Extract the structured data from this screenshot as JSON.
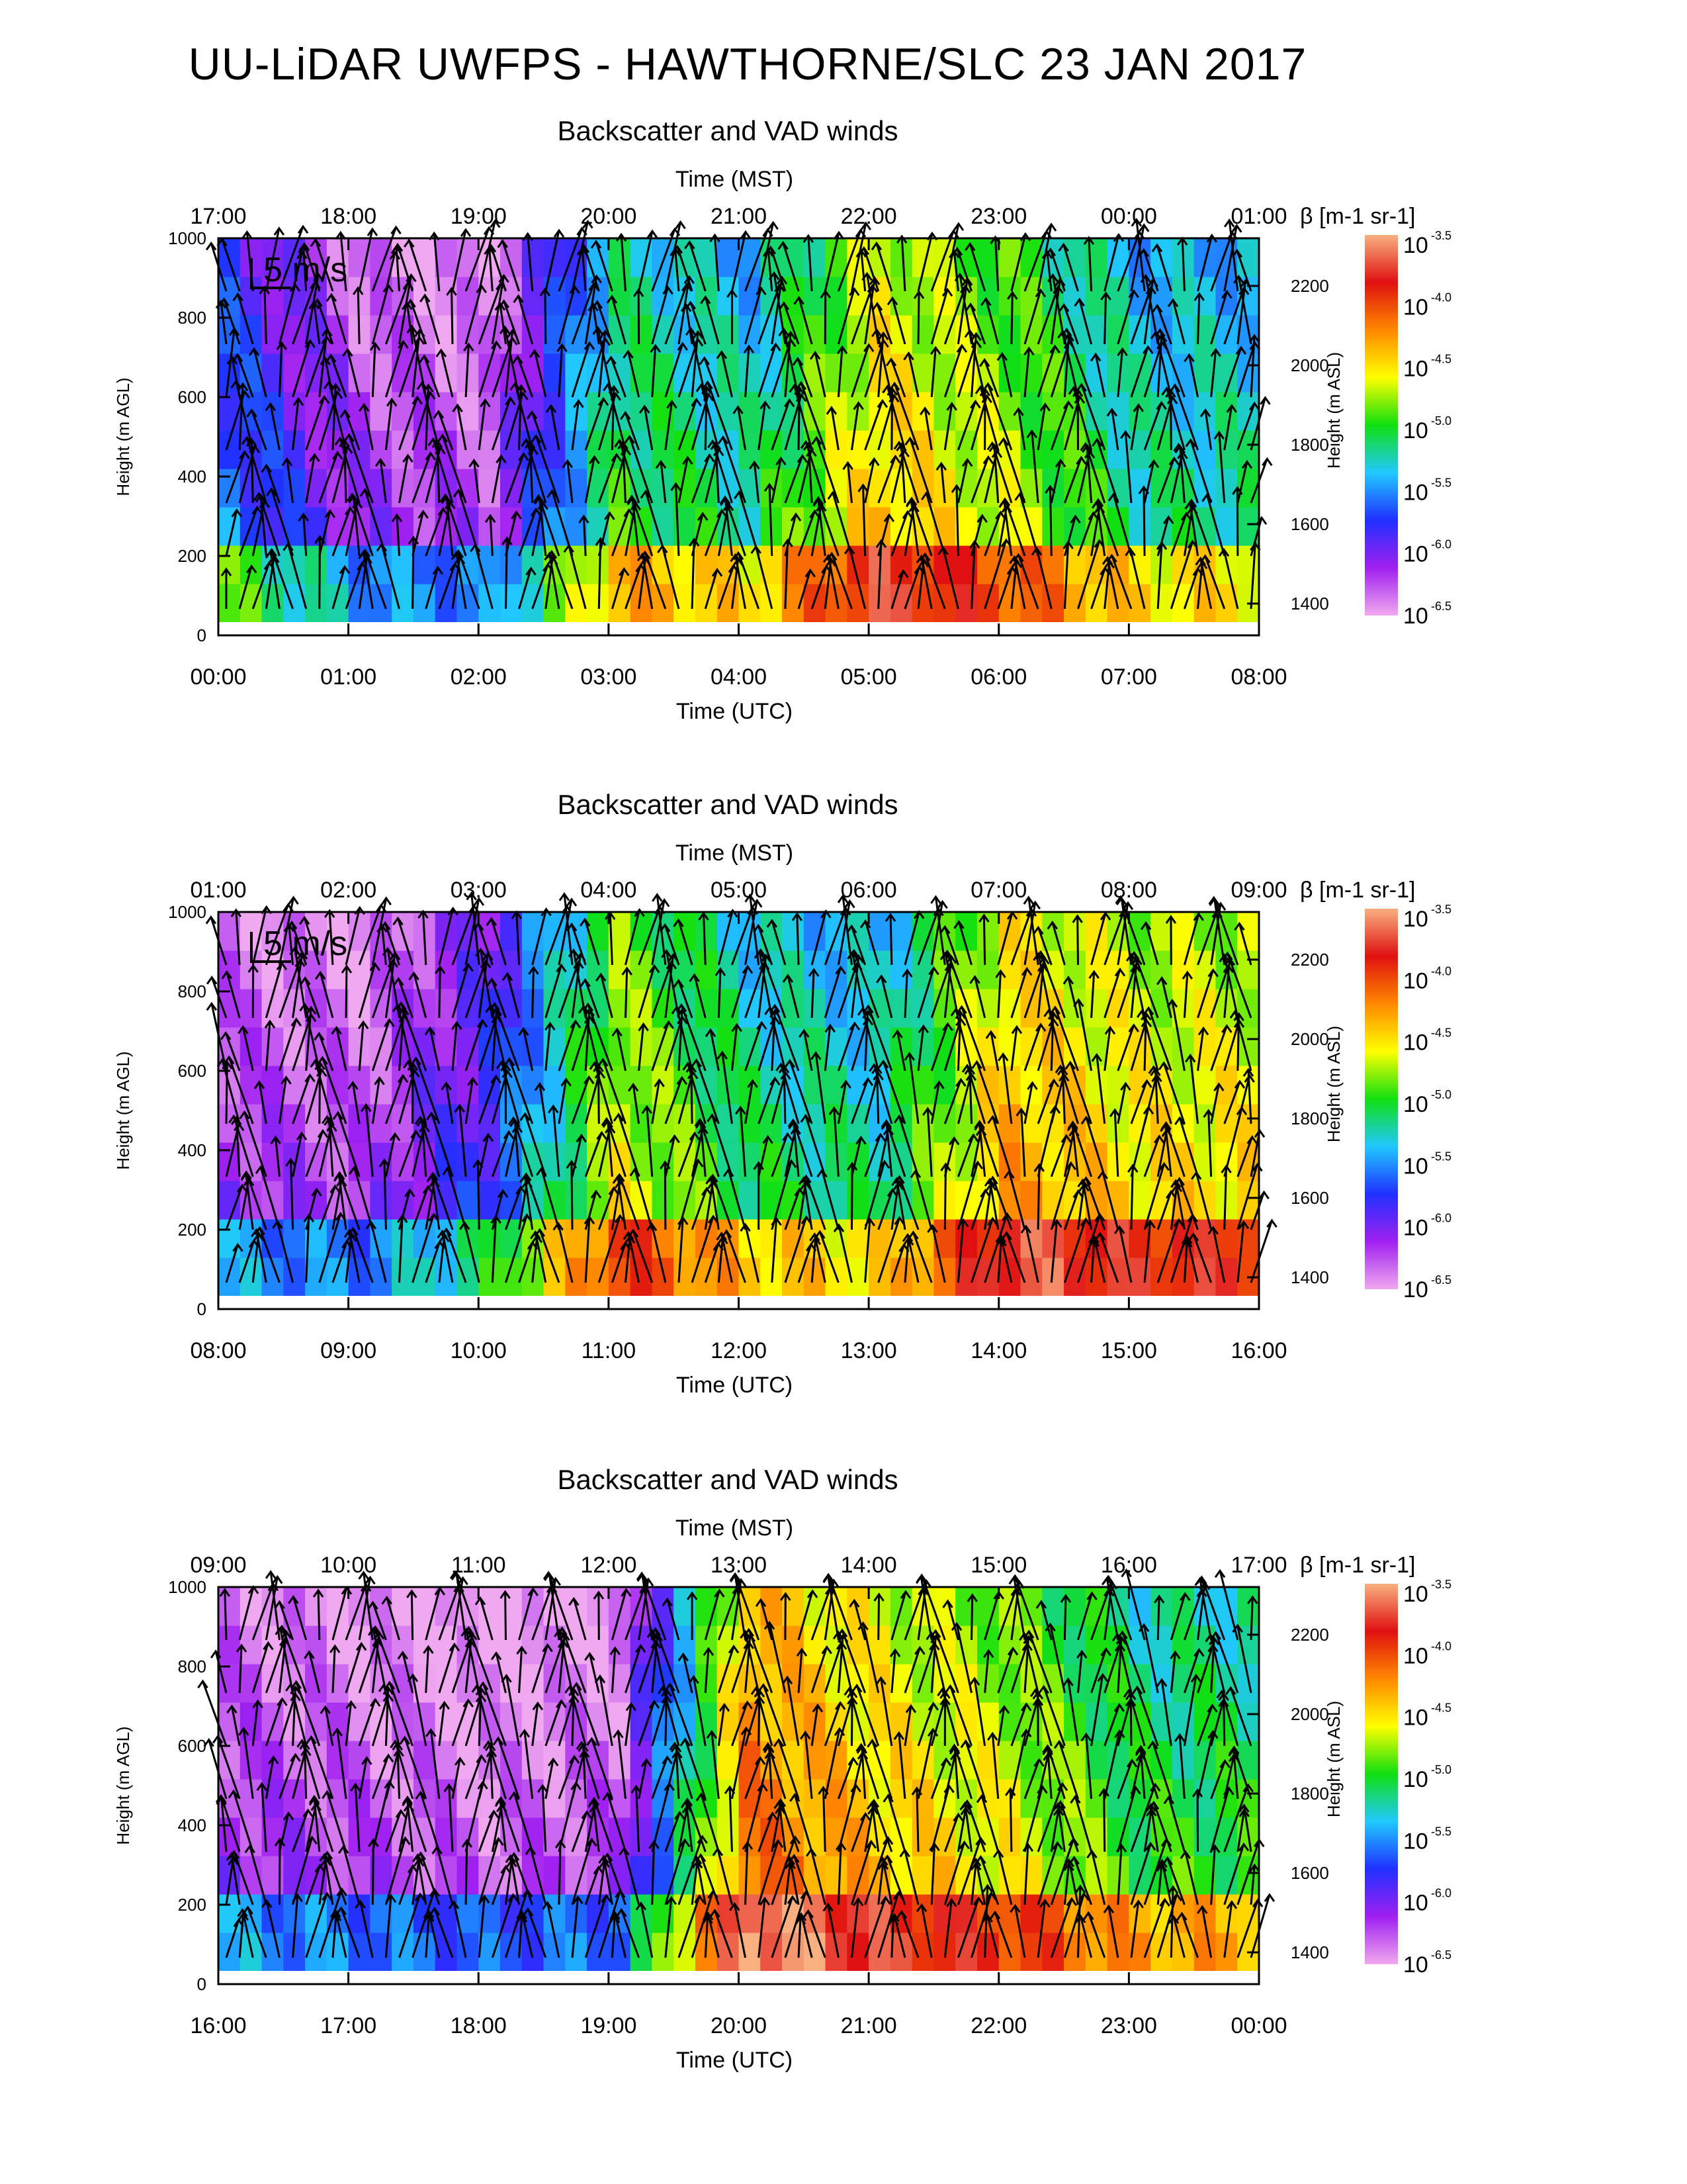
{
  "page": {
    "title": "UU-LiDAR UWFPS - HAWTHORNE/SLC 23 JAN 2017"
  },
  "colors": {
    "colormap": [
      "#f0a8f0",
      "#a020f0",
      "#2030ff",
      "#20c8ff",
      "#10e010",
      "#ffff00",
      "#ff8800",
      "#e01010",
      "#f8b080"
    ],
    "arrow": "#000000",
    "missing": "#ffffff"
  },
  "chart_data": [
    {
      "type": "heatmap",
      "title": "Backscatter and VAD winds",
      "xlabel_top": "Time (MST)",
      "xlabel_bottom": "Time (UTC)",
      "ylabel_left": "Height (m AGL)",
      "ylabel_right": "Height (m ASL)",
      "x_top_ticks": [
        "17:00",
        "18:00",
        "19:00",
        "20:00",
        "21:00",
        "22:00",
        "23:00",
        "00:00",
        "01:00"
      ],
      "x_bottom_ticks": [
        "00:00",
        "01:00",
        "02:00",
        "03:00",
        "04:00",
        "05:00",
        "06:00",
        "07:00",
        "08:00"
      ],
      "xlim_utc_hours": [
        0,
        8
      ],
      "ylim_agl": [
        0,
        1000
      ],
      "y_left_ticks": [
        0,
        200,
        400,
        600,
        800,
        1000
      ],
      "y_right_ticks": [
        1400,
        1600,
        1800,
        2000,
        2200
      ],
      "colorbar_label": "β [m-1 sr-1]",
      "colorbar_exponents": [
        "-3.5",
        "-4.0",
        "-4.5",
        "-5.0",
        "-5.5",
        "-6.0",
        "-6.5"
      ],
      "scale_arrow": "5 m/s",
      "log10_backscatter_by_hour": [
        -5.6,
        -6.2,
        -6.3,
        -5.0,
        -5.2,
        -4.4,
        -4.7,
        -5.2
      ]
    },
    {
      "type": "heatmap",
      "title": "Backscatter and VAD winds",
      "xlabel_top": "Time (MST)",
      "xlabel_bottom": "Time (UTC)",
      "ylabel_left": "Height (m AGL)",
      "ylabel_right": "Height (m ASL)",
      "x_top_ticks": [
        "01:00",
        "02:00",
        "03:00",
        "04:00",
        "05:00",
        "06:00",
        "07:00",
        "08:00",
        "09:00"
      ],
      "x_bottom_ticks": [
        "08:00",
        "09:00",
        "10:00",
        "11:00",
        "12:00",
        "13:00",
        "14:00",
        "15:00",
        "16:00"
      ],
      "xlim_utc_hours": [
        8,
        16
      ],
      "ylim_agl": [
        0,
        1000
      ],
      "y_left_ticks": [
        0,
        200,
        400,
        600,
        800,
        1000
      ],
      "y_right_ticks": [
        1400,
        1600,
        1800,
        2000,
        2200
      ],
      "colorbar_label": "β [m-1 sr-1]",
      "colorbar_exponents": [
        "-3.5",
        "-4.0",
        "-4.5",
        "-5.0",
        "-5.5",
        "-6.0",
        "-6.5"
      ],
      "scale_arrow": "5 m/s",
      "log10_backscatter_by_hour": [
        -6.2,
        -6.3,
        -5.8,
        -4.6,
        -5.1,
        -5.2,
        -4.3,
        -4.5
      ]
    },
    {
      "type": "heatmap",
      "title": "Backscatter and VAD winds",
      "xlabel_top": "Time (MST)",
      "xlabel_bottom": "Time (UTC)",
      "ylabel_left": "Height (m AGL)",
      "ylabel_right": "Height (m ASL)",
      "x_top_ticks": [
        "09:00",
        "10:00",
        "11:00",
        "12:00",
        "13:00",
        "14:00",
        "15:00",
        "16:00",
        "17:00"
      ],
      "x_bottom_ticks": [
        "16:00",
        "17:00",
        "18:00",
        "19:00",
        "20:00",
        "21:00",
        "22:00",
        "23:00",
        "00:00"
      ],
      "xlim_utc_hours": [
        16,
        24
      ],
      "ylim_agl": [
        0,
        1000
      ],
      "y_left_ticks": [
        0,
        200,
        400,
        600,
        800,
        1000
      ],
      "y_right_ticks": [
        1400,
        1600,
        1800,
        2000,
        2200
      ],
      "colorbar_label": "β [m-1 sr-1]",
      "colorbar_exponents": [
        "-3.5",
        "-4.0",
        "-4.5",
        "-5.0",
        "-5.5",
        "-6.0",
        "-6.5"
      ],
      "scale_arrow": "",
      "log10_backscatter_by_hour": [
        -6.2,
        -6.3,
        -6.4,
        -6.3,
        -4.1,
        -4.4,
        -4.6,
        -5.0
      ]
    }
  ]
}
